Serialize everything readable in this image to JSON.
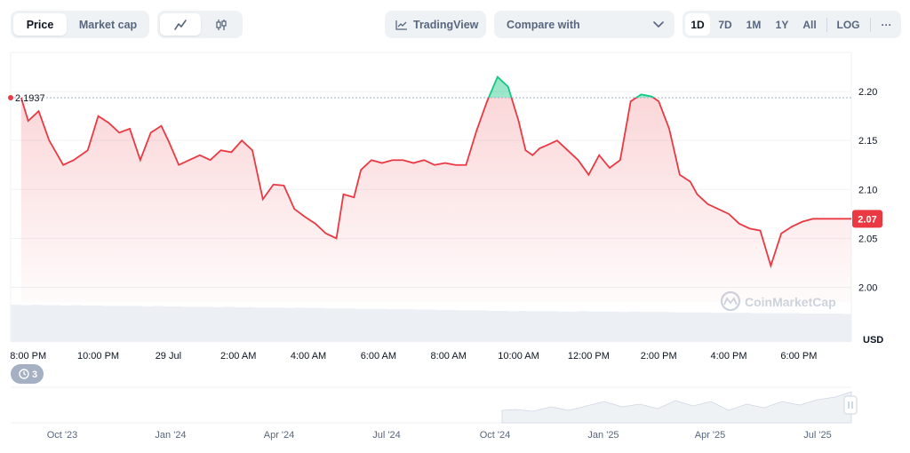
{
  "toolbar": {
    "price_label": "Price",
    "market_cap_label": "Market cap",
    "line_chart_icon": "line-chart-icon",
    "candle_chart_icon": "candlestick-icon",
    "tradingview_label": "TradingView",
    "compare_label": "Compare with",
    "ranges": [
      "1D",
      "7D",
      "1M",
      "1Y",
      "All"
    ],
    "active_range": "1D",
    "log_label": "LOG",
    "more_label": "···"
  },
  "colors": {
    "down": "#ea3943",
    "up": "#16c784",
    "grid": "#eff2f5",
    "badge_bg": "#ea3943"
  },
  "chart_data": {
    "type": "line",
    "currency_label": "USD",
    "reference_price": 2.1937,
    "reference_label": "2.1937",
    "current_price": 2.07,
    "current_label": "2.07",
    "ylim": [
      1.985,
      2.24
    ],
    "yticks": [
      2.0,
      2.05,
      2.1,
      2.15,
      2.2
    ],
    "ytick_labels": [
      "2.00",
      "2.05",
      "2.10",
      "2.15",
      "2.20"
    ],
    "xlim": [
      19.5,
      43.5
    ],
    "xticks": [
      20,
      22,
      24,
      26,
      28,
      30,
      32,
      34,
      36,
      38,
      40,
      42
    ],
    "xtick_labels": [
      "8:00 PM",
      "10:00 PM",
      "29 Jul",
      "2:00 AM",
      "4:00 AM",
      "6:00 AM",
      "8:00 AM",
      "10:00 AM",
      "12:00 PM",
      "2:00 PM",
      "4:00 PM",
      "6:00 PM"
    ],
    "x_unit": "hour",
    "x": [
      19.8,
      20.0,
      20.3,
      20.6,
      21.0,
      21.3,
      21.7,
      22.0,
      22.3,
      22.6,
      22.9,
      23.2,
      23.5,
      23.8,
      24.0,
      24.3,
      24.6,
      24.9,
      25.2,
      25.5,
      25.8,
      26.1,
      26.4,
      26.7,
      27.0,
      27.3,
      27.6,
      27.9,
      28.2,
      28.5,
      28.8,
      29.0,
      29.3,
      29.5,
      29.8,
      30.1,
      30.4,
      30.7,
      31.0,
      31.3,
      31.6,
      31.9,
      32.2,
      32.5,
      32.8,
      33.1,
      33.4,
      33.7,
      34.0,
      34.2,
      34.4,
      34.6,
      34.8,
      35.1,
      35.4,
      35.7,
      36.0,
      36.3,
      36.6,
      36.9,
      37.2,
      37.5,
      37.8,
      38.0,
      38.3,
      38.6,
      38.9,
      39.1,
      39.4,
      39.7,
      40.0,
      40.3,
      40.6,
      40.9,
      41.2,
      41.5,
      41.8,
      42.1,
      42.4,
      42.7,
      43.0,
      43.2,
      43.5
    ],
    "values": [
      2.1937,
      2.17,
      2.18,
      2.15,
      2.125,
      2.13,
      2.14,
      2.175,
      2.168,
      2.158,
      2.162,
      2.13,
      2.158,
      2.165,
      2.15,
      2.125,
      2.13,
      2.135,
      2.13,
      2.14,
      2.138,
      2.15,
      2.14,
      2.09,
      2.105,
      2.104,
      2.08,
      2.072,
      2.065,
      2.055,
      2.05,
      2.095,
      2.092,
      2.12,
      2.13,
      2.127,
      2.13,
      2.13,
      2.127,
      2.13,
      2.125,
      2.127,
      2.125,
      2.125,
      2.16,
      2.19,
      2.215,
      2.205,
      2.17,
      2.14,
      2.135,
      2.142,
      2.145,
      2.15,
      2.14,
      2.13,
      2.115,
      2.135,
      2.122,
      2.13,
      2.19,
      2.197,
      2.195,
      2.19,
      2.162,
      2.115,
      2.108,
      2.095,
      2.085,
      2.08,
      2.075,
      2.065,
      2.06,
      2.058,
      2.022,
      2.055,
      2.062,
      2.067,
      2.07,
      2.07,
      2.07,
      2.07,
      2.07
    ],
    "volume_values": [
      0.93,
      0.92,
      0.93,
      0.92,
      0.92,
      0.91,
      0.92,
      0.91,
      0.91,
      0.9,
      0.9,
      0.9,
      0.9,
      0.89,
      0.9,
      0.89,
      0.89,
      0.88,
      0.88,
      0.88,
      0.87,
      0.88,
      0.87,
      0.87,
      0.86,
      0.86,
      0.86,
      0.85,
      0.86,
      0.85,
      0.85,
      0.84,
      0.84,
      0.84,
      0.83,
      0.83,
      0.83,
      0.82,
      0.82,
      0.82,
      0.81,
      0.81,
      0.8,
      0.8,
      0.79,
      0.79,
      0.79,
      0.78,
      0.78,
      0.77,
      0.78,
      0.77,
      0.77,
      0.77,
      0.76,
      0.76,
      0.77,
      0.76,
      0.76,
      0.76,
      0.75,
      0.76,
      0.75,
      0.75,
      0.75,
      0.74,
      0.74,
      0.74,
      0.74,
      0.73,
      0.73,
      0.73,
      0.73,
      0.72,
      0.72,
      0.72,
      0.72,
      0.72,
      0.71,
      0.71,
      0.71,
      0.71,
      0.7
    ],
    "grid": true,
    "watermark": "CoinMarketCap"
  },
  "navigator": {
    "badge_count": "3",
    "history_icon": "history-icon",
    "labels": [
      "Oct '23",
      "Jan '24",
      "Apr '24",
      "Jul '24",
      "Oct '24",
      "Jan '25",
      "Apr '25",
      "Jul '25"
    ],
    "handle_icon": "drag-handle-icon"
  }
}
